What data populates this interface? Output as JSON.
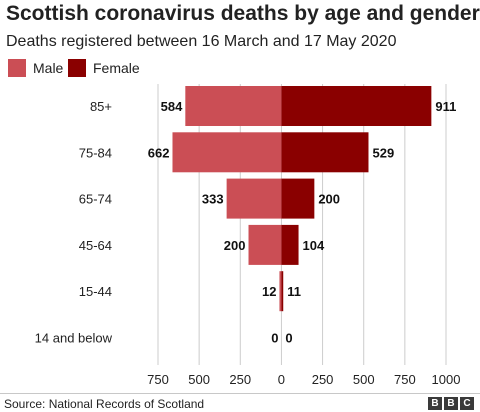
{
  "source": "Source: National Records of Scotland",
  "logo": [
    "B",
    "B",
    "C"
  ],
  "colors": {
    "male": "#cb4e55",
    "female": "#8a0000",
    "grid": "#cccccc",
    "axis_text": "#222222"
  },
  "chart_data": {
    "type": "bar",
    "orientation": "horizontal-diverging",
    "title": "Scottish coronavirus deaths by age and gender",
    "subtitle": "Deaths registered between 16 March and 17 May 2020",
    "categories": [
      "85+",
      "75-84",
      "65-74",
      "45-64",
      "15-44",
      "14 and below"
    ],
    "series": [
      {
        "name": "Male",
        "side": "left",
        "color": "#cb4e55",
        "values": [
          584,
          662,
          333,
          200,
          12,
          0
        ]
      },
      {
        "name": "Female",
        "side": "right",
        "color": "#8a0000",
        "values": [
          911,
          529,
          200,
          104,
          11,
          0
        ]
      }
    ],
    "xlim": [
      -750,
      1000
    ],
    "x_ticks": [
      -750,
      -500,
      -250,
      0,
      250,
      500,
      750,
      1000
    ],
    "x_tick_labels": [
      "750",
      "500",
      "250",
      "0",
      "250",
      "500",
      "750",
      "1000"
    ],
    "grid": true,
    "legend_position": "top-left",
    "data_labels": true
  }
}
